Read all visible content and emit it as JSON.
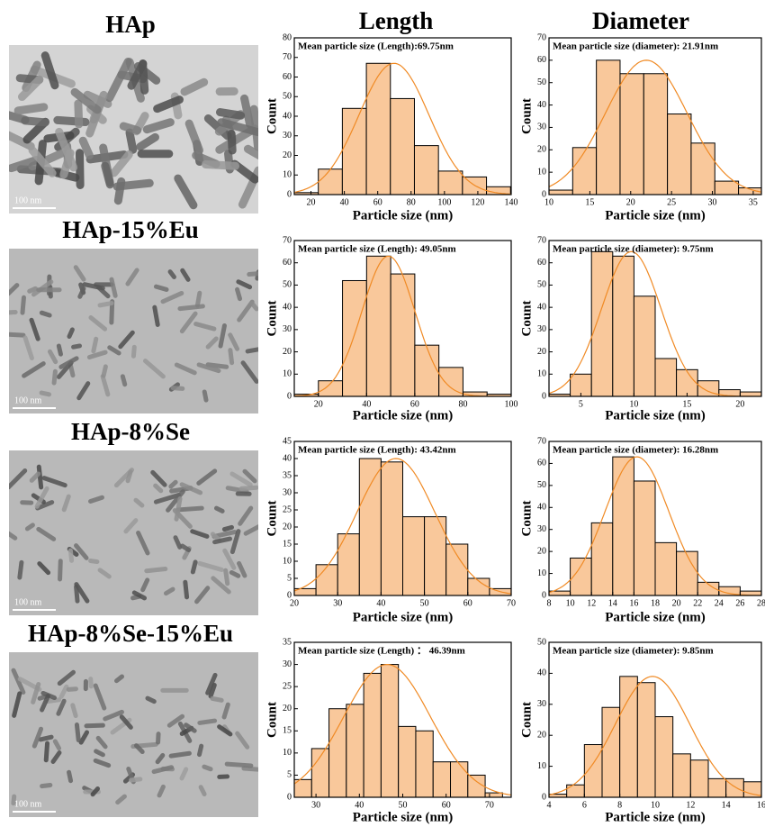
{
  "column_headers": [
    "Length",
    "Diameter"
  ],
  "rows": [
    {
      "label": "HAp",
      "scale_bar": "100 nm"
    },
    {
      "label": "HAp-15%Eu",
      "scale_bar": "100 nm"
    },
    {
      "label": "HAp-8%Se",
      "scale_bar": "100 nm"
    },
    {
      "label": "HAp-8%Se-15%Eu",
      "scale_bar": "100 nm"
    }
  ],
  "chart_data": [
    {
      "type": "histogram",
      "annotation": "Mean particle size (Length):69.75nm",
      "xlabel": "Particle size (nm)",
      "ylabel": "Count",
      "bins": [
        10,
        24.4,
        38.8,
        53.2,
        67.6,
        82,
        96.4,
        110.8,
        125.2,
        139.6
      ],
      "values": [
        1,
        13,
        44,
        67,
        49,
        25,
        12,
        9,
        4
      ],
      "xlim": [
        10,
        140
      ],
      "xticks": [
        20,
        40,
        60,
        80,
        100,
        120,
        140
      ],
      "ylim": [
        0,
        80
      ],
      "yticks": [
        0,
        10,
        20,
        30,
        40,
        50,
        60,
        70,
        80
      ],
      "color": "#f9c89b",
      "fit_curve": {
        "color": "#f08a24",
        "mean": 69.75,
        "sd": 21,
        "peak": 67
      }
    },
    {
      "type": "histogram",
      "annotation": "Mean particle size (diameter): 21.91nm",
      "xlabel": "Particle size (nm)",
      "ylabel": "Count",
      "bins": [
        10,
        12.9,
        15.8,
        18.7,
        21.6,
        24.5,
        27.4,
        30.3,
        33.2,
        36
      ],
      "values": [
        2,
        21,
        60,
        54,
        54,
        36,
        23,
        6,
        3
      ],
      "xlim": [
        10,
        36
      ],
      "xticks": [
        10,
        15,
        20,
        25,
        30,
        35
      ],
      "ylim": [
        0,
        70
      ],
      "yticks": [
        0,
        10,
        20,
        30,
        40,
        50,
        60,
        70
      ],
      "color": "#f9c89b",
      "fit_curve": {
        "color": "#f08a24",
        "mean": 21.91,
        "sd": 5,
        "peak": 60
      }
    },
    {
      "type": "histogram",
      "annotation": "Mean particle size (Length): 49.05nm",
      "xlabel": "Particle size (nm)",
      "ylabel": "Count",
      "bins": [
        10,
        20,
        30,
        40,
        50,
        60,
        70,
        80,
        90,
        100
      ],
      "values": [
        1,
        7,
        52,
        63,
        55,
        23,
        13,
        2,
        1
      ],
      "xlim": [
        10,
        100
      ],
      "xticks": [
        20,
        40,
        60,
        80,
        100
      ],
      "ylim": [
        0,
        70
      ],
      "yticks": [
        0,
        10,
        20,
        30,
        40,
        50,
        60,
        70
      ],
      "color": "#f9c89b",
      "fit_curve": {
        "color": "#f08a24",
        "mean": 49.05,
        "sd": 11,
        "peak": 63
      }
    },
    {
      "type": "histogram",
      "annotation": "Mean particle size (diameter): 9.75nm",
      "xlabel": "Particle size (nm)",
      "ylabel": "Count",
      "bins": [
        2,
        4,
        6,
        8,
        10,
        12,
        14,
        16,
        18,
        20,
        22
      ],
      "values": [
        1,
        10,
        65,
        63,
        45,
        17,
        12,
        7,
        3,
        2
      ],
      "xlim": [
        2,
        22
      ],
      "xticks": [
        5,
        10,
        15,
        20
      ],
      "ylim": [
        0,
        70
      ],
      "yticks": [
        0,
        10,
        20,
        30,
        40,
        50,
        60,
        70
      ],
      "color": "#f9c89b",
      "fit_curve": {
        "color": "#f08a24",
        "mean": 9.75,
        "sd": 2.8,
        "peak": 65
      }
    },
    {
      "type": "histogram",
      "annotation": "Mean particle size (Length): 43.42nm",
      "xlabel": "Particle size (nm)",
      "ylabel": "Count",
      "bins": [
        20,
        25,
        30,
        35,
        40,
        45,
        50,
        55,
        60,
        65,
        70
      ],
      "values": [
        2,
        9,
        18,
        40,
        39,
        23,
        23,
        15,
        5,
        2
      ],
      "xlim": [
        20,
        70
      ],
      "xticks": [
        20,
        30,
        40,
        50,
        60,
        70
      ],
      "ylim": [
        0,
        45
      ],
      "yticks": [
        0,
        5,
        10,
        15,
        20,
        25,
        30,
        35,
        40,
        45
      ],
      "color": "#f9c89b",
      "fit_curve": {
        "color": "#f08a24",
        "mean": 43.42,
        "sd": 9,
        "peak": 40
      }
    },
    {
      "type": "histogram",
      "annotation": "Mean particle size (diameter): 16.28nm",
      "xlabel": "Particle size (nm)",
      "ylabel": "Count",
      "bins": [
        8,
        10,
        12,
        14,
        16,
        18,
        20,
        22,
        24,
        26,
        28
      ],
      "values": [
        2,
        17,
        33,
        63,
        52,
        24,
        20,
        6,
        4,
        2
      ],
      "xlim": [
        8,
        28
      ],
      "xticks": [
        8,
        10,
        12,
        14,
        16,
        18,
        20,
        22,
        24,
        26,
        28
      ],
      "ylim": [
        0,
        70
      ],
      "yticks": [
        0,
        10,
        20,
        30,
        40,
        50,
        60,
        70
      ],
      "color": "#f9c89b",
      "fit_curve": {
        "color": "#f08a24",
        "mean": 16.28,
        "sd": 3,
        "peak": 63
      }
    },
    {
      "type": "histogram",
      "annotation": "Mean particle size (Length) ： 46.39nm",
      "xlabel": "Particle size (nm)",
      "ylabel": "Count",
      "bins": [
        25,
        29,
        33,
        37,
        41,
        45,
        49,
        53,
        57,
        61,
        65,
        69,
        73
      ],
      "values": [
        4,
        11,
        20,
        21,
        28,
        30,
        16,
        15,
        8,
        8,
        5,
        1
      ],
      "xlim": [
        25,
        75
      ],
      "xticks": [
        30,
        40,
        50,
        60,
        70
      ],
      "ylim": [
        0,
        35
      ],
      "yticks": [
        0,
        5,
        10,
        15,
        20,
        25,
        30,
        35
      ],
      "color": "#f9c89b",
      "fit_curve": {
        "color": "#f08a24",
        "mean": 46.39,
        "sd": 10,
        "peak": 30
      }
    },
    {
      "type": "histogram",
      "annotation": "Mean particle size (diameter): 9.85nm",
      "xlabel": "Particle size (nm)",
      "ylabel": "Count",
      "bins": [
        4,
        5,
        6,
        7,
        8,
        9,
        10,
        11,
        12,
        13,
        14,
        15,
        16
      ],
      "values": [
        1,
        4,
        17,
        29,
        39,
        37,
        26,
        14,
        12,
        6,
        6,
        5
      ],
      "xlim": [
        4,
        16
      ],
      "xticks": [
        4,
        6,
        8,
        10,
        12,
        14,
        16
      ],
      "ylim": [
        0,
        50
      ],
      "yticks": [
        0,
        10,
        20,
        30,
        40,
        50
      ],
      "color": "#f9c89b",
      "fit_curve": {
        "color": "#f08a24",
        "mean": 9.85,
        "sd": 2.1,
        "peak": 39
      }
    }
  ]
}
